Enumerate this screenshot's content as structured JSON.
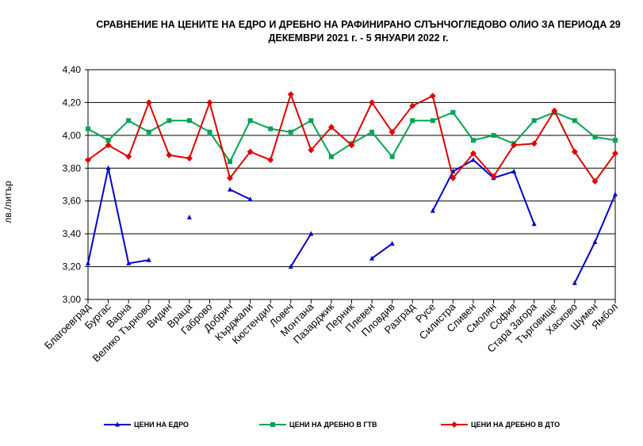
{
  "chart_data": {
    "type": "line",
    "title_line1": "СРАВНЕНИЕ НА ЦЕНИТЕ НА ЕДРО И ДРЕБНО НА РАФИНИРАНО СЛЪНЧОГЛЕДОВО ОЛИО ЗА ПЕРИОДА 29",
    "title_line2": "ДЕКЕМВРИ 2021 г. - 5 ЯНУАРИ 2022 г.",
    "ylabel": "лв./литър",
    "xlabel": "",
    "ylim": [
      3.0,
      4.4
    ],
    "yticks": [
      "3,00",
      "3,20",
      "3,40",
      "3,60",
      "3,80",
      "4,00",
      "4,20",
      "4,40"
    ],
    "grid": true,
    "legend_position": "bottom",
    "categories": [
      "Благоевград",
      "Бургас",
      "Варна",
      "Велико Търново",
      "Видин",
      "Враца",
      "Габрово",
      "Добрич",
      "Кърджали",
      "Кюстендил",
      "Ловеч",
      "Монтана",
      "Пазарджик",
      "Перник",
      "Плевен",
      "Пловдив",
      "Разград",
      "Русе",
      "Силистра",
      "Сливен",
      "Смолян",
      "София",
      "Стара Загора",
      "Търговище",
      "Хасково",
      "Шумен",
      "Ямбол"
    ],
    "series": [
      {
        "name": "ЦЕНИ НА ЕДРО",
        "color": "#0000CC",
        "marker": "triangle",
        "values": [
          3.22,
          3.8,
          3.22,
          3.24,
          null,
          3.5,
          null,
          3.67,
          3.61,
          null,
          3.2,
          3.4,
          null,
          null,
          3.25,
          3.34,
          null,
          3.54,
          3.78,
          3.85,
          3.74,
          3.78,
          3.46,
          null,
          3.1,
          3.35,
          3.64
        ]
      },
      {
        "name": "ЦЕНИ НА ДРЕБНО В ГТВ",
        "color": "#00A550",
        "marker": "square",
        "values": [
          4.04,
          3.97,
          4.09,
          4.02,
          4.09,
          4.09,
          4.02,
          3.84,
          4.09,
          4.04,
          4.02,
          4.09,
          3.87,
          3.95,
          4.02,
          3.87,
          4.09,
          4.09,
          4.14,
          3.97,
          4.0,
          3.95,
          4.09,
          4.14,
          4.09,
          3.99,
          3.97
        ]
      },
      {
        "name": "ЦЕНИ НА ДРЕБНО В ДТО",
        "color": "#E00000",
        "marker": "diamond",
        "values": [
          3.85,
          3.94,
          3.87,
          4.2,
          3.88,
          3.86,
          4.2,
          3.74,
          3.9,
          3.85,
          4.25,
          3.91,
          4.05,
          3.94,
          4.2,
          4.02,
          4.18,
          4.24,
          3.74,
          3.89,
          3.75,
          3.94,
          3.95,
          4.15,
          3.9,
          3.72,
          3.89
        ]
      }
    ]
  }
}
